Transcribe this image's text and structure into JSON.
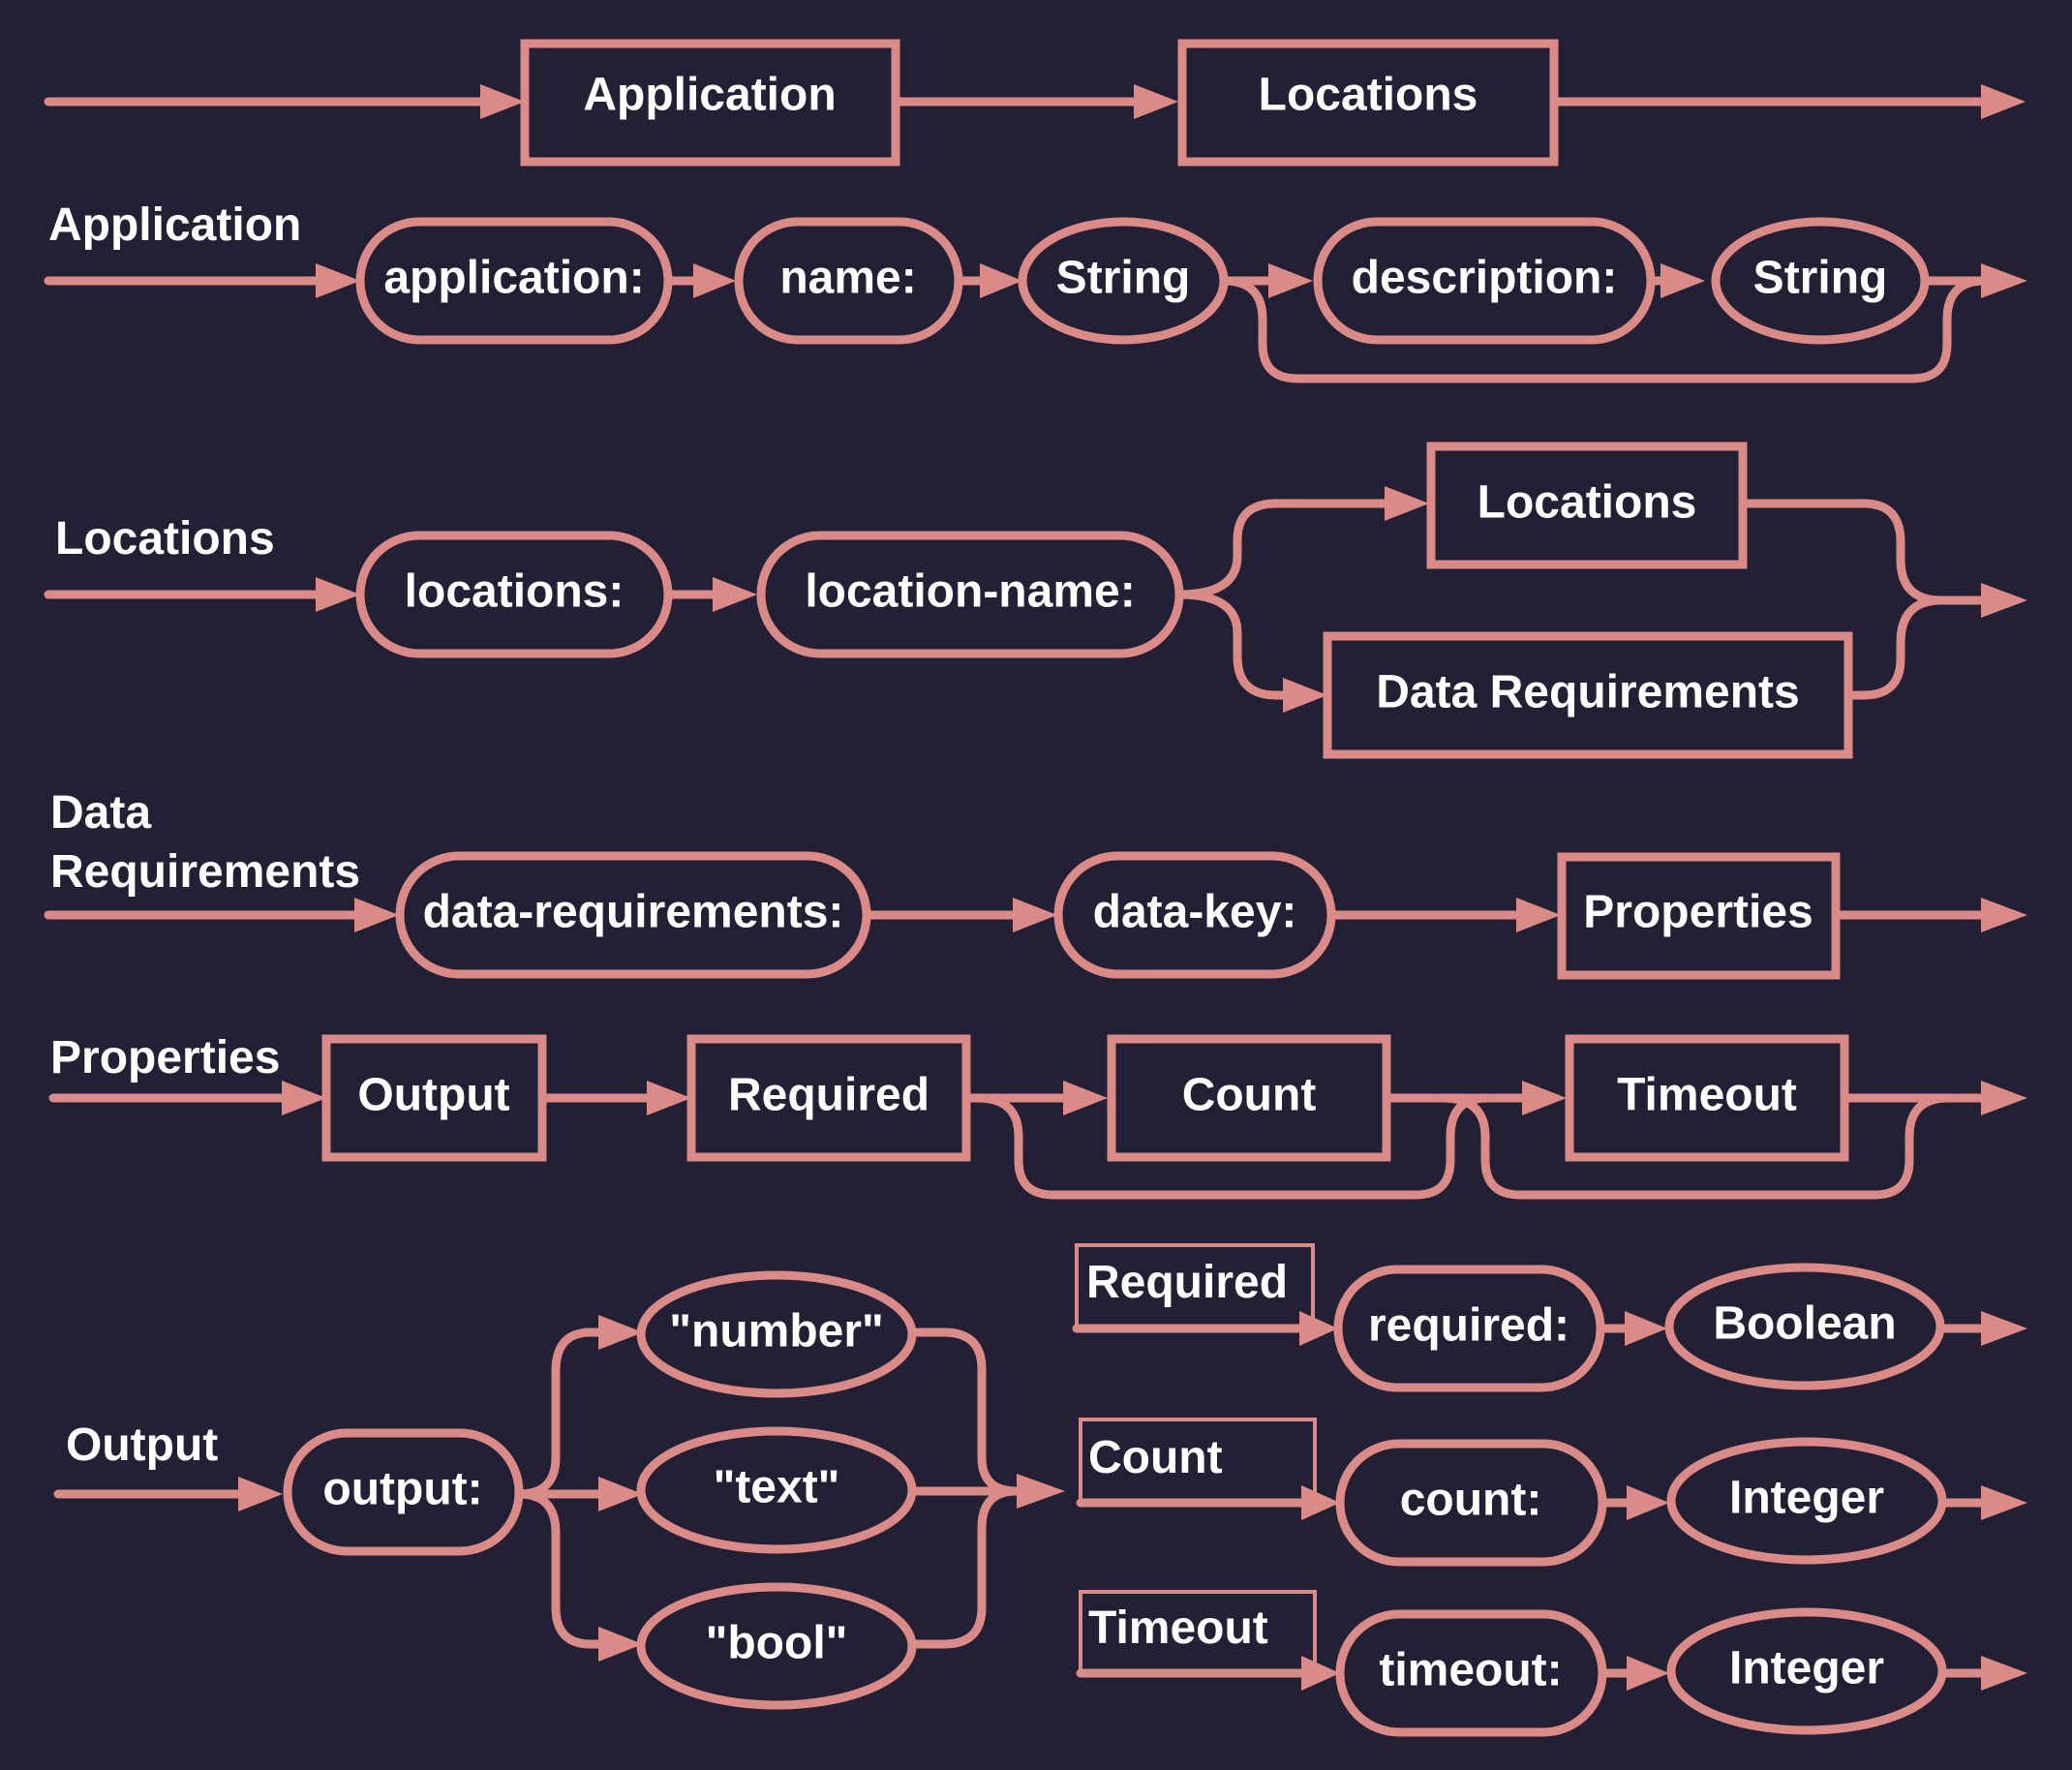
{
  "colors": {
    "background": "#232035",
    "line": "#da8a87",
    "text": "#ffffff"
  },
  "rows": {
    "top": {
      "application": "Application",
      "locations": "Locations"
    },
    "application": {
      "title": "Application",
      "application_kw": "application:",
      "name_kw": "name:",
      "name_type": "String",
      "description_kw": "description:",
      "description_type": "String"
    },
    "locations": {
      "title": "Locations",
      "locations_kw": "locations:",
      "location_name_kw": "location-name:",
      "locations_ref": "Locations",
      "data_requirements_ref": "Data Requirements"
    },
    "data_requirements": {
      "title_line1": "Data",
      "title_line2": "Requirements",
      "data_requirements_kw": "data-requirements:",
      "data_key_kw": "data-key:",
      "properties_ref": "Properties"
    },
    "properties": {
      "title": "Properties",
      "output_ref": "Output",
      "required_ref": "Required",
      "count_ref": "Count",
      "timeout_ref": "Timeout"
    },
    "output": {
      "title": "Output",
      "output_kw": "output:",
      "number_val": "\"number\"",
      "text_val": "\"text\"",
      "bool_val": "\"bool\""
    },
    "required": {
      "title": "Required",
      "required_kw": "required:",
      "required_type": "Boolean"
    },
    "count": {
      "title": "Count",
      "count_kw": "count:",
      "count_type": "Integer"
    },
    "timeout": {
      "title": "Timeout",
      "timeout_kw": "timeout:",
      "timeout_type": "Integer"
    }
  }
}
